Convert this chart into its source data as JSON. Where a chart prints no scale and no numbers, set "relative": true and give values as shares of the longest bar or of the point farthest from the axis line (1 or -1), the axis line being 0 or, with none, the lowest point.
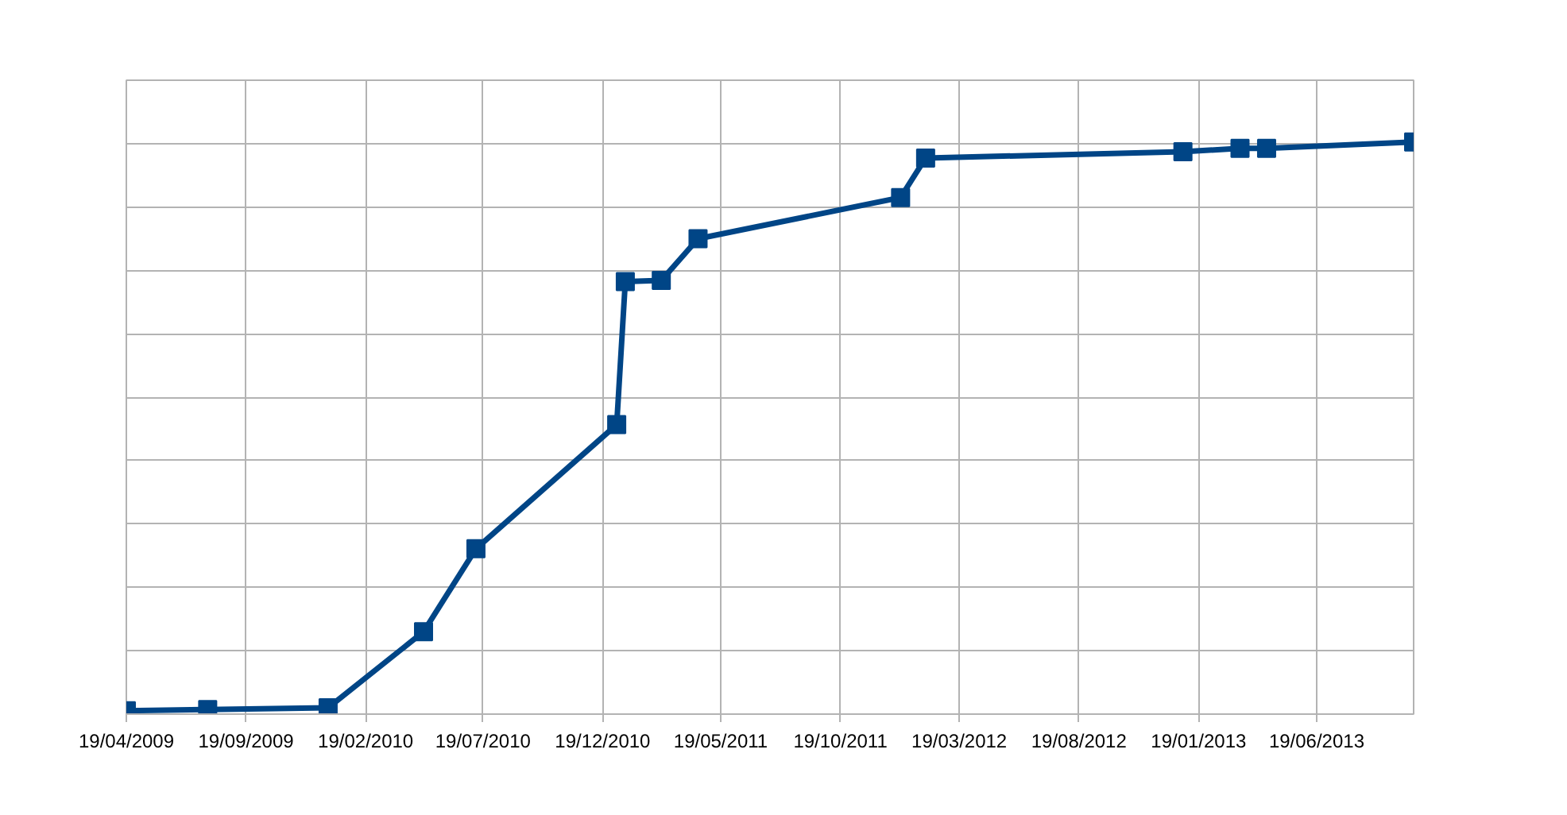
{
  "chart_data": {
    "type": "line",
    "relative": true,
    "x": [
      "2009-04-19",
      "2009-08-01",
      "2010-01-02",
      "2010-05-04",
      "2010-07-10",
      "2011-01-06",
      "2011-01-17",
      "2011-03-04",
      "2011-04-20",
      "2012-01-04",
      "2012-02-05",
      "2012-12-30",
      "2013-03-13",
      "2013-04-16",
      "2013-10-21"
    ],
    "series": [
      {
        "color": "#004586",
        "values": [
          0.006,
          0.008,
          0.011,
          0.144,
          0.289,
          0.506,
          0.756,
          0.758,
          0.831,
          0.903,
          0.972,
          0.983,
          0.989,
          0.989,
          1
        ]
      }
    ],
    "xlim": [
      "2009-04-19",
      "2013-10-21"
    ],
    "xticks": [
      {
        "value": "2009-04-19",
        "label": "19/04/2009"
      },
      {
        "value": "2009-09-19",
        "label": "19/09/2009"
      },
      {
        "value": "2010-02-19",
        "label": "19/02/2010"
      },
      {
        "value": "2010-07-19",
        "label": "19/07/2010"
      },
      {
        "value": "2010-12-19",
        "label": "19/12/2010"
      },
      {
        "value": "2011-05-19",
        "label": "19/05/2011"
      },
      {
        "value": "2011-10-19",
        "label": "19/10/2011"
      },
      {
        "value": "2012-03-19",
        "label": "19/03/2012"
      },
      {
        "value": "2012-08-19",
        "label": "19/08/2012"
      },
      {
        "value": "2013-01-19",
        "label": "19/01/2013"
      },
      {
        "value": "2013-06-19",
        "label": "19/06/2013"
      }
    ],
    "grid": true,
    "marker": "square",
    "line_style": "solid"
  }
}
